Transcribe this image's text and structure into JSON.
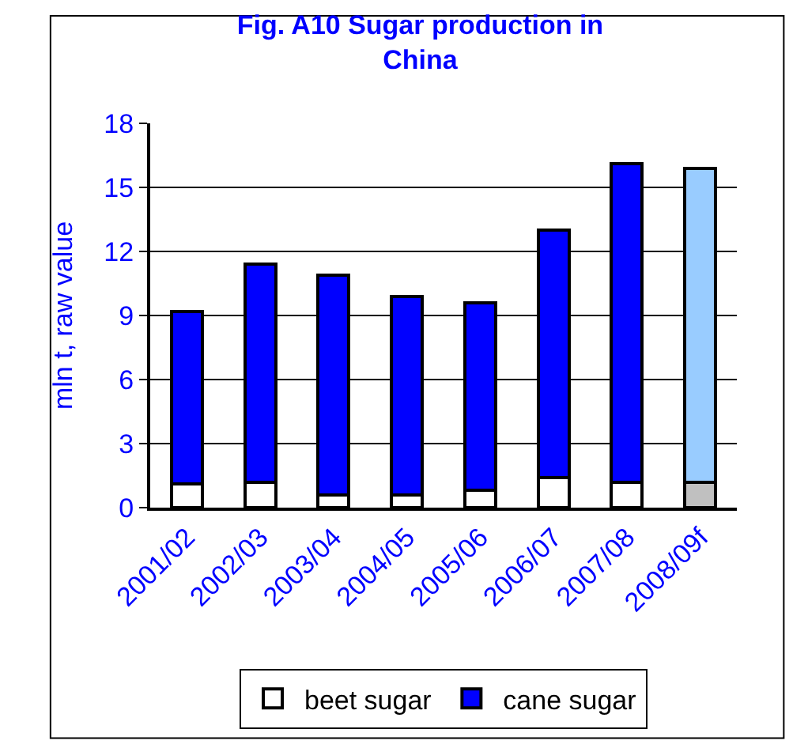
{
  "chart_data": {
    "type": "bar",
    "title": "Fig. A10 Sugar production in China",
    "ylabel": "mln t, raw value",
    "categories": [
      "2001/02",
      "2002/03",
      "2003/04",
      "2004/05",
      "2005/06",
      "2006/07",
      "2007/08",
      "2008/09f"
    ],
    "stacked": true,
    "series": [
      {
        "name": "beet sugar",
        "colors": [
          "#ffffff",
          "#ffffff",
          "#ffffff",
          "#ffffff",
          "#ffffff",
          "#ffffff",
          "#ffffff",
          "#c0c0c0"
        ],
        "values": [
          1.1,
          1.2,
          0.6,
          0.6,
          0.8,
          1.4,
          1.2,
          1.2
        ]
      },
      {
        "name": "cane sugar",
        "colors": [
          "#0000ff",
          "#0000ff",
          "#0000ff",
          "#0000ff",
          "#0000ff",
          "#0000ff",
          "#0000ff",
          "#99ccff"
        ],
        "values": [
          8.1,
          10.2,
          10.3,
          9.3,
          8.8,
          11.6,
          14.9,
          14.7
        ]
      }
    ],
    "ylim": [
      0,
      18
    ],
    "yticks": [
      0,
      3,
      6,
      9,
      12,
      15,
      18
    ],
    "grid": "y",
    "legend": "bottom"
  }
}
